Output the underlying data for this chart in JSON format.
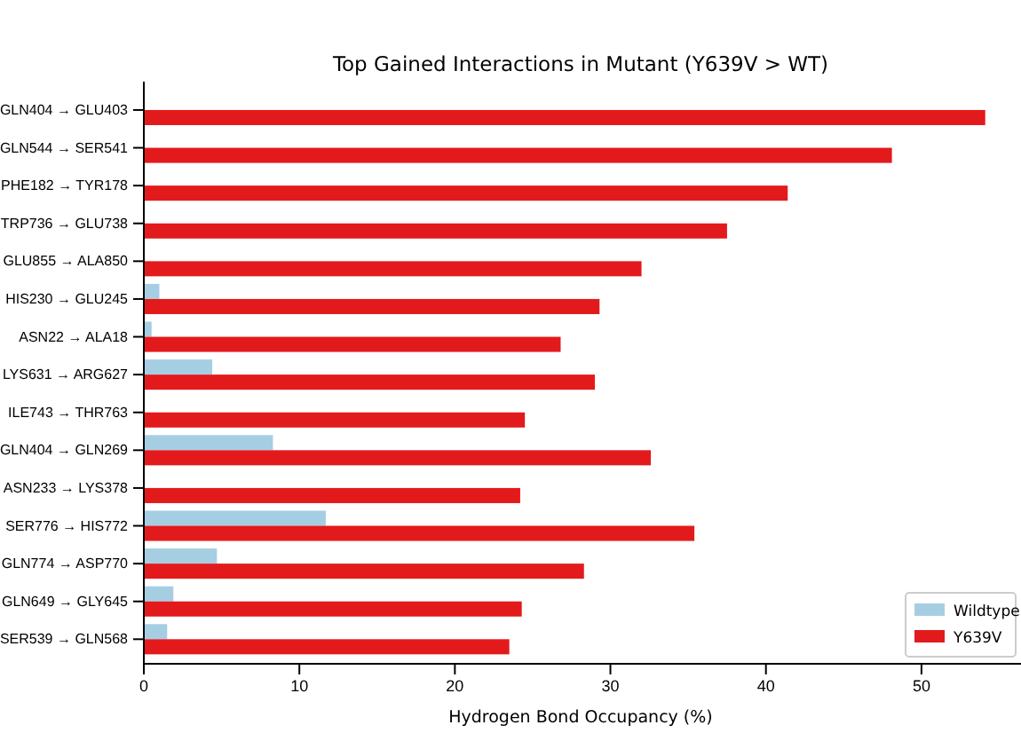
{
  "chart_data": {
    "type": "bar",
    "orientation": "horizontal",
    "title": "Top Gained Interactions in Mutant (Y639V > WT)",
    "xlabel": "Hydrogen Bond Occupancy (%)",
    "categories": [
      "GLN404 → GLU403",
      "GLN544 → SER541",
      "PHE182 → TYR178",
      "TRP736 → GLU738",
      "GLU855 → ALA850",
      "HIS230 → GLU245",
      "ASN22 → ALA18",
      "LYS631 → ARG627",
      "ILE743 → THR763",
      "GLN404 → GLN269",
      "ASN233 → LYS378",
      "SER776 → HIS772",
      "GLN774 → ASP770",
      "GLN649 → GLY645",
      "SER539 → GLN568"
    ],
    "series": [
      {
        "name": "Wildtype",
        "color": "#a6cee3",
        "values": [
          0,
          0,
          0,
          0,
          0,
          1.0,
          0.5,
          4.4,
          0,
          8.3,
          0,
          11.7,
          4.7,
          1.9,
          1.5
        ]
      },
      {
        "name": "Y639V",
        "color": "#e31a1c",
        "values": [
          54.1,
          48.1,
          41.4,
          37.5,
          32.0,
          29.3,
          26.8,
          29.0,
          24.5,
          32.6,
          24.2,
          35.4,
          28.3,
          24.3,
          23.5
        ]
      }
    ],
    "xlim": [
      0,
      56.4
    ],
    "xticks": [
      0,
      10,
      20,
      30,
      40,
      50
    ],
    "grid": false,
    "legend": "bottom right"
  }
}
